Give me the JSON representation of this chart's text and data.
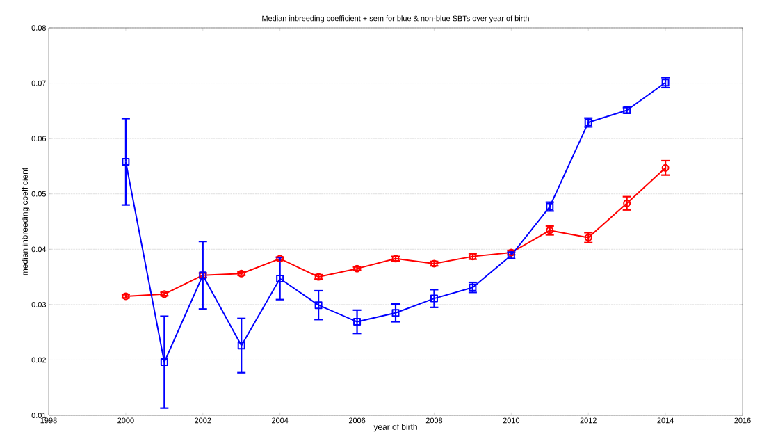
{
  "chart_data": {
    "type": "line",
    "title": "Median inbreeding coefficient + sem for blue & non-blue SBTs over year of birth",
    "xlabel": "year of birth",
    "ylabel": "median inbreeding coefficient",
    "x": [
      2000,
      2001,
      2002,
      2003,
      2004,
      2005,
      2006,
      2007,
      2008,
      2009,
      2010,
      2011,
      2012,
      2013,
      2014
    ],
    "series": [
      {
        "color": "#ff0000",
        "marker": "circle",
        "values": [
          0.0315,
          0.0319,
          0.0353,
          0.0356,
          0.0383,
          0.035,
          0.0365,
          0.0383,
          0.0374,
          0.0387,
          0.0394,
          0.0434,
          0.0421,
          0.0483,
          0.0547
        ],
        "errors": [
          0.0003,
          0.0003,
          0.0004,
          0.0003,
          0.0003,
          0.0004,
          0.0003,
          0.0004,
          0.0004,
          0.0005,
          0.0004,
          0.0008,
          0.0009,
          0.0012,
          0.0013
        ]
      },
      {
        "color": "#0000ff",
        "marker": "square",
        "values": [
          0.0558,
          0.0196,
          0.0353,
          0.0226,
          0.0347,
          0.0299,
          0.0269,
          0.0285,
          0.0311,
          0.0331,
          0.0389,
          0.0477,
          0.0629,
          0.0651,
          0.0701
        ],
        "errors": [
          0.0078,
          0.0083,
          0.0061,
          0.0049,
          0.0038,
          0.0026,
          0.0021,
          0.0016,
          0.0016,
          0.0009,
          0.0006,
          0.0008,
          0.0008,
          0.0005,
          0.0009
        ]
      }
    ],
    "xlim": [
      1998,
      2016
    ],
    "xticks": [
      1998,
      2000,
      2002,
      2004,
      2006,
      2008,
      2010,
      2012,
      2014,
      2016
    ],
    "ylim": [
      0.01,
      0.08
    ],
    "yticks": [
      0.01,
      0.02,
      0.03,
      0.04,
      0.05,
      0.06,
      0.07,
      0.08
    ],
    "grid": "y",
    "line_style": "solid"
  }
}
